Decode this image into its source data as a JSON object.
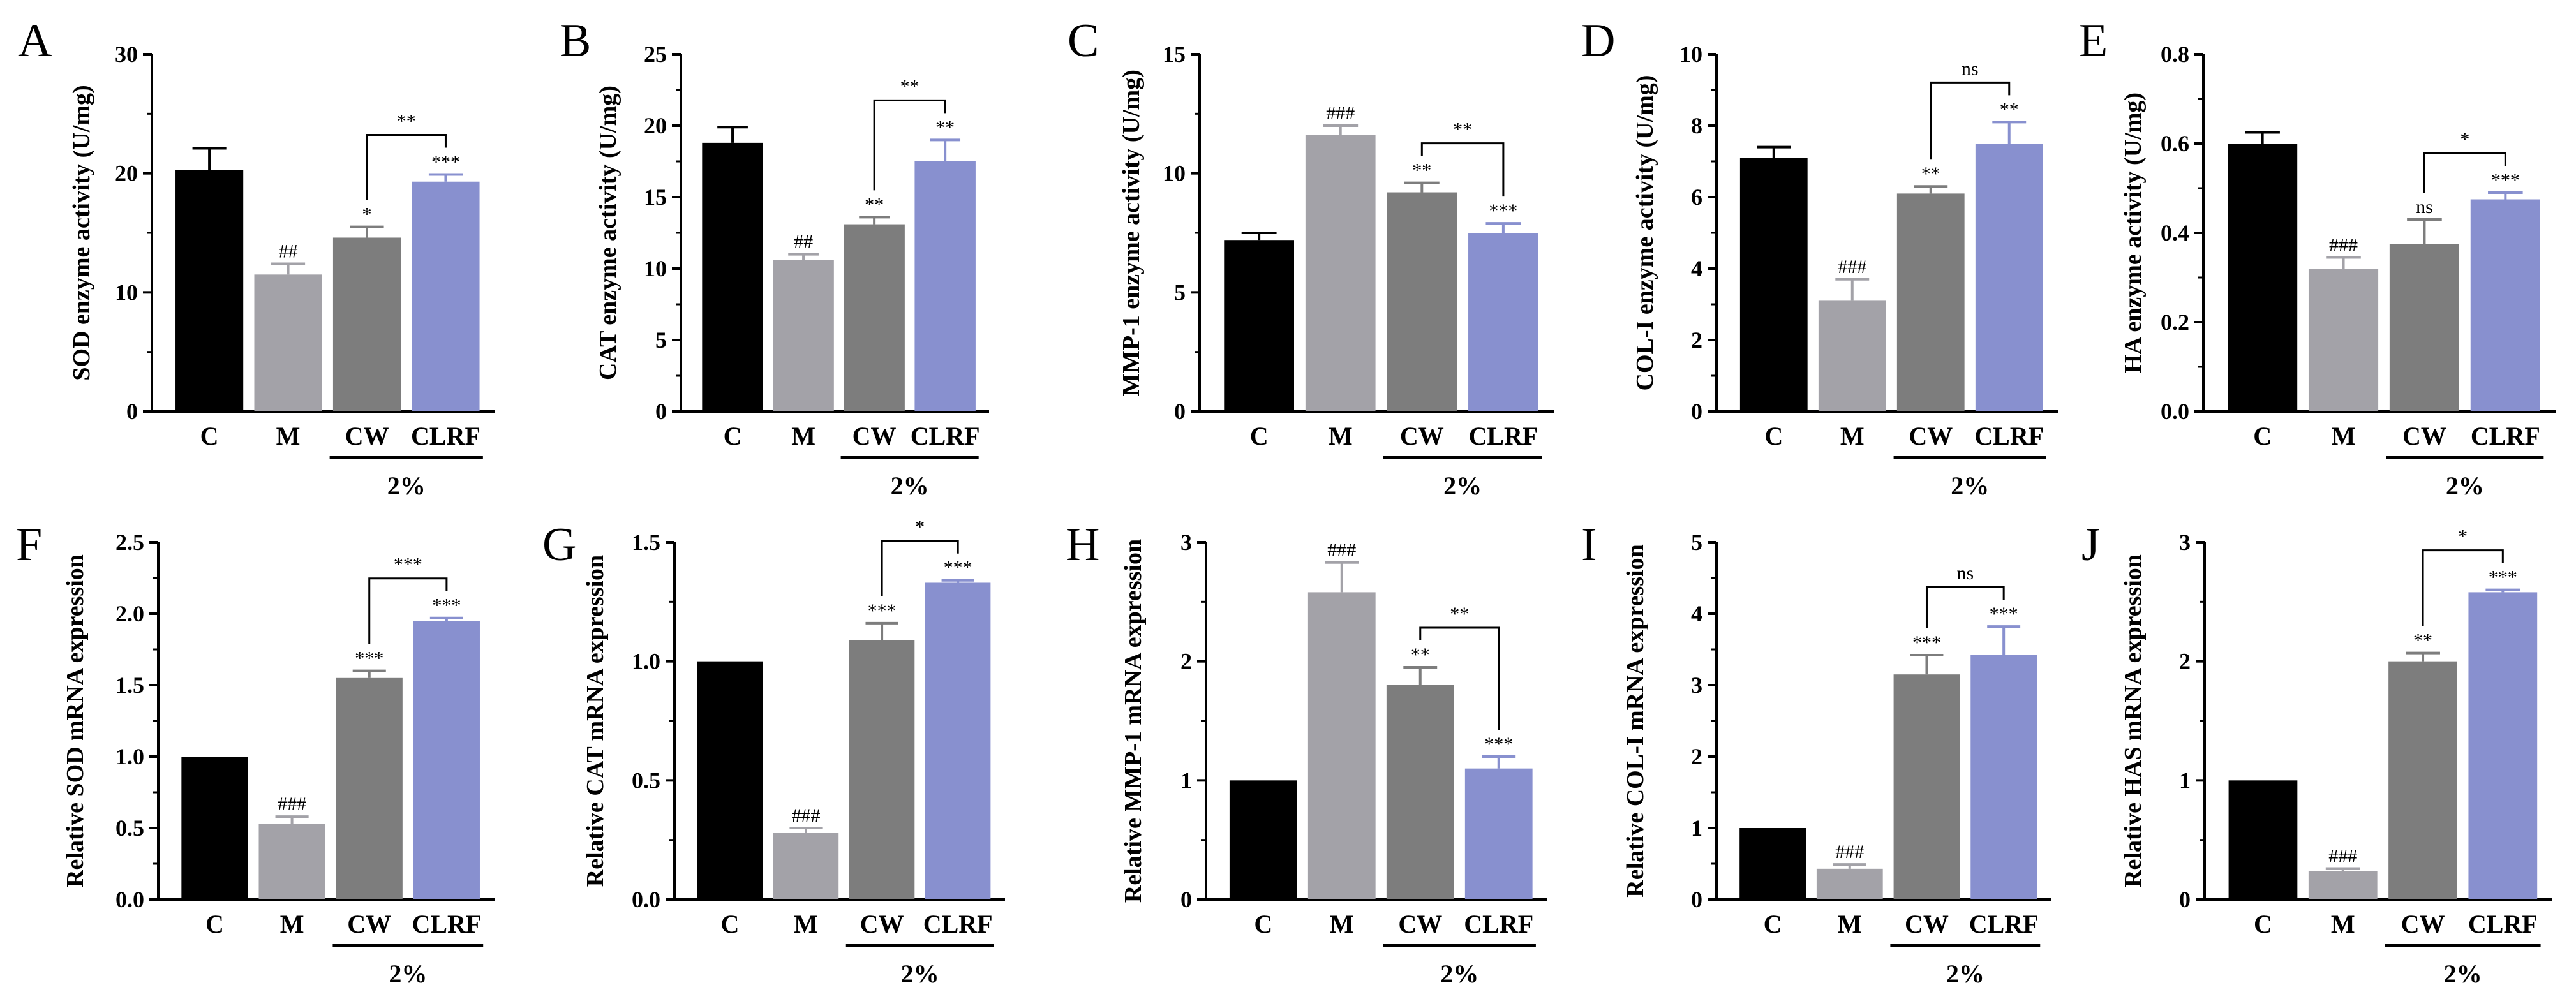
{
  "colors": {
    "C": "#000000",
    "M": "#a3a2a8",
    "CW": "#7d7d7d",
    "CLRF": "#8890cf"
  },
  "group_label": "2%",
  "chart_data": [
    {
      "type": "bar",
      "panel": "A",
      "ylabel": "SOD enzyme activity (U/mg)",
      "ylim": [
        0,
        30
      ],
      "yticks": [
        0,
        10,
        20,
        30
      ],
      "yticklabels": [
        "0",
        "10",
        "20",
        "30"
      ],
      "categories": [
        "C",
        "M",
        "CW",
        "CLRF"
      ],
      "values": [
        20.3,
        11.5,
        14.6,
        19.3
      ],
      "errors": [
        1.8,
        0.9,
        0.9,
        0.6
      ],
      "marks": [
        "",
        "##",
        "*",
        "***"
      ],
      "bracket": {
        "from": 2,
        "to": 3,
        "label": "**"
      },
      "group_label": "2%"
    },
    {
      "type": "bar",
      "panel": "B",
      "ylabel": "CAT enzyme activity (U/mg)",
      "ylim": [
        0,
        25
      ],
      "yticks": [
        0,
        5,
        10,
        15,
        20,
        25
      ],
      "yticklabels": [
        "0",
        "5",
        "10",
        "15",
        "20",
        "25"
      ],
      "categories": [
        "C",
        "M",
        "CW",
        "CLRF"
      ],
      "values": [
        18.8,
        10.6,
        13.1,
        17.5
      ],
      "errors": [
        1.1,
        0.4,
        0.5,
        1.5
      ],
      "marks": [
        "",
        "##",
        "**",
        "**"
      ],
      "bracket": {
        "from": 2,
        "to": 3,
        "label": "**"
      },
      "group_label": "2%"
    },
    {
      "type": "bar",
      "panel": "C",
      "ylabel": "MMP-1 enzyme activity (U/mg)",
      "ylim": [
        0,
        15
      ],
      "yticks": [
        0,
        5,
        10,
        15
      ],
      "yticklabels": [
        "0",
        "5",
        "10",
        "15"
      ],
      "categories": [
        "C",
        "M",
        "CW",
        "CLRF"
      ],
      "values": [
        7.2,
        11.6,
        9.2,
        7.5
      ],
      "errors": [
        0.3,
        0.4,
        0.4,
        0.4
      ],
      "marks": [
        "",
        "###",
        "**",
        "***"
      ],
      "bracket": {
        "from": 2,
        "to": 3,
        "label": "**"
      },
      "group_label": "2%"
    },
    {
      "type": "bar",
      "panel": "D",
      "ylabel": "COL-I enzyme activity (U/mg)",
      "ylim": [
        0,
        10
      ],
      "yticks": [
        0,
        2,
        4,
        6,
        8,
        10
      ],
      "yticklabels": [
        "0",
        "2",
        "4",
        "6",
        "8",
        "10"
      ],
      "categories": [
        "C",
        "M",
        "CW",
        "CLRF"
      ],
      "values": [
        7.1,
        3.1,
        6.1,
        7.5
      ],
      "errors": [
        0.3,
        0.6,
        0.2,
        0.6
      ],
      "marks": [
        "",
        "###",
        "**",
        "**"
      ],
      "bracket": {
        "from": 2,
        "to": 3,
        "label": "ns"
      },
      "group_label": "2%"
    },
    {
      "type": "bar",
      "panel": "E",
      "ylabel": "HA enzyme activity (U/mg)",
      "ylim": [
        0,
        0.8
      ],
      "yticks": [
        0,
        0.2,
        0.4,
        0.6,
        0.8
      ],
      "yticklabels": [
        "0.0",
        "0.2",
        "0.4",
        "0.6",
        "0.8"
      ],
      "categories": [
        "C",
        "M",
        "CW",
        "CLRF"
      ],
      "values": [
        0.6,
        0.32,
        0.375,
        0.475
      ],
      "errors": [
        0.025,
        0.025,
        0.055,
        0.015
      ],
      "marks": [
        "",
        "###",
        "ns",
        "***"
      ],
      "bracket": {
        "from": 2,
        "to": 3,
        "label": "*"
      },
      "group_label": "2%"
    },
    {
      "type": "bar",
      "panel": "F",
      "ylabel": "Relative  SOD mRNA expression",
      "ylim": [
        0,
        2.5
      ],
      "yticks": [
        0,
        0.5,
        1,
        1.5,
        2,
        2.5
      ],
      "yticklabels": [
        "0.0",
        "0.5",
        "1.0",
        "1.5",
        "2.0",
        "2.5"
      ],
      "categories": [
        "C",
        "M",
        "CW",
        "CLRF"
      ],
      "values": [
        1.0,
        0.53,
        1.55,
        1.95
      ],
      "errors": [
        0,
        0.05,
        0.05,
        0.02
      ],
      "marks": [
        "",
        "###",
        "***",
        "***"
      ],
      "bracket": {
        "from": 2,
        "to": 3,
        "label": "***"
      },
      "group_label": "2%"
    },
    {
      "type": "bar",
      "panel": "G",
      "ylabel": "Relative  CAT mRNA expression",
      "ylim": [
        0,
        1.5
      ],
      "yticks": [
        0,
        0.5,
        1,
        1.5
      ],
      "yticklabels": [
        "0.0",
        "0.5",
        "1.0",
        "1.5"
      ],
      "categories": [
        "C",
        "M",
        "CW",
        "CLRF"
      ],
      "values": [
        1.0,
        0.28,
        1.09,
        1.33
      ],
      "errors": [
        0,
        0.02,
        0.07,
        0.01
      ],
      "marks": [
        "",
        "###",
        "***",
        "***"
      ],
      "bracket": {
        "from": 2,
        "to": 3,
        "label": "*"
      },
      "group_label": "2%"
    },
    {
      "type": "bar",
      "panel": "H",
      "ylabel": "Relative  MMP-1 mRNA expression",
      "ylim": [
        0,
        3
      ],
      "yticks": [
        0,
        1,
        2,
        3
      ],
      "yticklabels": [
        "0",
        "1",
        "2",
        "3"
      ],
      "categories": [
        "C",
        "M",
        "CW",
        "CLRF"
      ],
      "values": [
        1.0,
        2.58,
        1.8,
        1.1
      ],
      "errors": [
        0,
        0.25,
        0.15,
        0.1
      ],
      "marks": [
        "",
        "###",
        "**",
        "***"
      ],
      "bracket": {
        "from": 2,
        "to": 3,
        "label": "**"
      },
      "group_label": "2%"
    },
    {
      "type": "bar",
      "panel": "I",
      "ylabel": "Relative  COL-I mRNA expression",
      "ylim": [
        0,
        5
      ],
      "yticks": [
        0,
        1,
        2,
        3,
        4,
        5
      ],
      "yticklabels": [
        "0",
        "1",
        "2",
        "3",
        "4",
        "5"
      ],
      "categories": [
        "C",
        "M",
        "CW",
        "CLRF"
      ],
      "values": [
        1.0,
        0.43,
        3.15,
        3.42
      ],
      "errors": [
        0,
        0.06,
        0.27,
        0.4
      ],
      "marks": [
        "",
        "###",
        "***",
        "***"
      ],
      "bracket": {
        "from": 2,
        "to": 3,
        "label": "ns"
      },
      "group_label": "2%"
    },
    {
      "type": "bar",
      "panel": "J",
      "ylabel": "Relative  HAS mRNA expression",
      "ylim": [
        0,
        3
      ],
      "yticks": [
        0,
        1,
        2,
        3
      ],
      "yticklabels": [
        "0",
        "1",
        "2",
        "3"
      ],
      "categories": [
        "C",
        "M",
        "CW",
        "CLRF"
      ],
      "values": [
        1.0,
        0.24,
        2.0,
        2.58
      ],
      "errors": [
        0,
        0.02,
        0.07,
        0.02
      ],
      "marks": [
        "",
        "###",
        "**",
        "***"
      ],
      "bracket": {
        "from": 2,
        "to": 3,
        "label": "*"
      },
      "group_label": "2%"
    }
  ]
}
